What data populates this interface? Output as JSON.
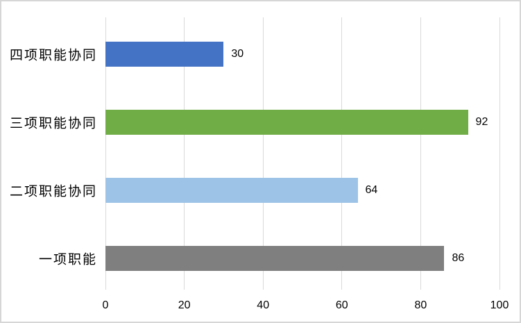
{
  "chart_data": {
    "type": "bar",
    "orientation": "horizontal",
    "title": "",
    "xlabel": "",
    "ylabel": "",
    "categories": [
      "四项职能协同",
      "三项职能协同",
      "二项职能协同",
      "一项职能"
    ],
    "values": [
      30,
      92,
      64,
      86
    ],
    "data_labels": [
      "30",
      "92",
      "64",
      "86"
    ],
    "bar_colors": [
      "#4472C4",
      "#70AD47",
      "#9DC3E6",
      "#7F7F7F"
    ],
    "xlim": [
      0,
      100
    ],
    "x_ticks": [
      "0",
      "20",
      "40",
      "60",
      "80",
      "100"
    ],
    "grid": "vertical-only",
    "legend": "none"
  },
  "colors": {
    "background": "#FFFFFF",
    "frame_border": "#D6D6D6",
    "gridline": "#D9D9D9",
    "text": "#000000"
  }
}
